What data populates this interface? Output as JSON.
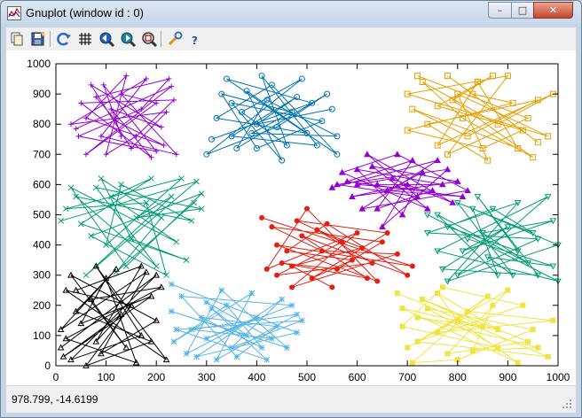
{
  "window": {
    "title": "Gnuplot (window id : 0)"
  },
  "title_buttons": {
    "minimize": "–",
    "maximize": "□",
    "close": "✕"
  },
  "toolbar": {
    "icons": [
      "copy-icon",
      "print-icon",
      "replot-icon",
      "grid-icon",
      "zoom-previous-icon",
      "zoom-next-icon",
      "unzoom-icon",
      "options-icon",
      "help-icon"
    ]
  },
  "status": {
    "coordinates": "978.799, -14.6199"
  },
  "chart_data": {
    "type": "line",
    "title": "",
    "xlabel": "",
    "ylabel": "",
    "xlim": [
      0,
      1000
    ],
    "ylim": [
      0,
      1000
    ],
    "xticks": [
      "0",
      "100",
      "200",
      "300",
      "400",
      "500",
      "600",
      "700",
      "800",
      "900",
      "1000"
    ],
    "yticks": [
      "0",
      "100",
      "200",
      "300",
      "400",
      "500",
      "600",
      "700",
      "800",
      "900",
      "1000"
    ],
    "grid": false,
    "series": [
      {
        "color": "#9400d3",
        "marker": "plus",
        "values": [
          [
            40,
            785
          ],
          [
            230,
            925
          ],
          [
            60,
            700
          ],
          [
            200,
            870
          ],
          [
            130,
            900
          ],
          [
            240,
            700
          ],
          [
            90,
            760
          ],
          [
            180,
            950
          ],
          [
            30,
            800
          ],
          [
            220,
            840
          ],
          [
            150,
            720
          ],
          [
            70,
            930
          ],
          [
            210,
            790
          ],
          [
            110,
            850
          ],
          [
            190,
            690
          ],
          [
            50,
            870
          ],
          [
            235,
            880
          ],
          [
            160,
            760
          ],
          [
            100,
            700
          ],
          [
            140,
            960
          ],
          [
            60,
            820
          ],
          [
            215,
            730
          ],
          [
            120,
            810
          ],
          [
            80,
            890
          ],
          [
            225,
            950
          ],
          [
            170,
            850
          ],
          [
            45,
            760
          ],
          [
            200,
            710
          ],
          [
            95,
            930
          ],
          [
            130,
            760
          ]
        ]
      },
      {
        "color": "#009e73",
        "marker": "x",
        "values": [
          [
            10,
            480
          ],
          [
            280,
            610
          ],
          [
            60,
            300
          ],
          [
            230,
            560
          ],
          [
            160,
            490
          ],
          [
            290,
            520
          ],
          [
            80,
            590
          ],
          [
            200,
            330
          ],
          [
            40,
            560
          ],
          [
            270,
            480
          ],
          [
            130,
            600
          ],
          [
            100,
            400
          ],
          [
            250,
            620
          ],
          [
            20,
            520
          ],
          [
            180,
            540
          ],
          [
            220,
            300
          ],
          [
            70,
            430
          ],
          [
            290,
            570
          ],
          [
            140,
            330
          ],
          [
            30,
            590
          ],
          [
            240,
            410
          ],
          [
            110,
            560
          ],
          [
            190,
            620
          ],
          [
            50,
            470
          ],
          [
            260,
            350
          ],
          [
            150,
            420
          ],
          [
            90,
            620
          ],
          [
            210,
            490
          ],
          [
            120,
            310
          ],
          [
            275,
            540
          ]
        ]
      },
      {
        "color": "#56b4e9",
        "marker": "star",
        "values": [
          [
            230,
            270
          ],
          [
            480,
            110
          ],
          [
            280,
            30
          ],
          [
            450,
            220
          ],
          [
            350,
            60
          ],
          [
            490,
            150
          ],
          [
            240,
            120
          ],
          [
            420,
            20
          ],
          [
            310,
            190
          ],
          [
            380,
            100
          ],
          [
            230,
            180
          ],
          [
            460,
            60
          ],
          [
            330,
            250
          ],
          [
            260,
            40
          ],
          [
            400,
            160
          ],
          [
            300,
            90
          ],
          [
            470,
            200
          ],
          [
            250,
            230
          ],
          [
            360,
            30
          ],
          [
            440,
            130
          ],
          [
            290,
            160
          ],
          [
            410,
            60
          ],
          [
            340,
            200
          ],
          [
            235,
            80
          ],
          [
            390,
            240
          ],
          [
            320,
            20
          ],
          [
            480,
            170
          ],
          [
            270,
            120
          ],
          [
            430,
            90
          ],
          [
            300,
            210
          ]
        ]
      },
      {
        "color": "#000000",
        "marker": "triangle",
        "values": [
          [
            10,
            60
          ],
          [
            200,
            300
          ],
          [
            30,
            20
          ],
          [
            170,
            100
          ],
          [
            80,
            330
          ],
          [
            220,
            20
          ],
          [
            20,
            250
          ],
          [
            150,
            200
          ],
          [
            60,
            0
          ],
          [
            190,
            80
          ],
          [
            40,
            180
          ],
          [
            120,
            320
          ],
          [
            10,
            120
          ],
          [
            180,
            310
          ],
          [
            90,
            40
          ],
          [
            200,
            150
          ],
          [
            30,
            300
          ],
          [
            140,
            60
          ],
          [
            70,
            220
          ],
          [
            210,
            260
          ],
          [
            20,
            90
          ],
          [
            160,
            10
          ],
          [
            100,
            290
          ],
          [
            50,
            140
          ],
          [
            190,
            230
          ],
          [
            15,
            30
          ],
          [
            130,
            170
          ],
          [
            80,
            80
          ],
          [
            170,
            330
          ],
          [
            40,
            250
          ]
        ]
      },
      {
        "color": "#0072b2",
        "marker": "circle",
        "values": [
          [
            310,
            750
          ],
          [
            510,
            870
          ],
          [
            340,
            950
          ],
          [
            560,
            700
          ],
          [
            430,
            930
          ],
          [
            320,
            820
          ],
          [
            500,
            770
          ],
          [
            380,
            910
          ],
          [
            450,
            680
          ],
          [
            350,
            870
          ],
          [
            530,
            810
          ],
          [
            400,
            720
          ],
          [
            330,
            900
          ],
          [
            470,
            840
          ],
          [
            390,
            770
          ],
          [
            560,
            760
          ],
          [
            420,
            880
          ],
          [
            360,
            720
          ],
          [
            540,
            900
          ],
          [
            440,
            790
          ],
          [
            300,
            700
          ],
          [
            490,
            950
          ],
          [
            370,
            840
          ],
          [
            460,
            730
          ],
          [
            410,
            960
          ],
          [
            520,
            730
          ],
          [
            350,
            760
          ],
          [
            480,
            890
          ],
          [
            400,
            800
          ],
          [
            550,
            850
          ]
        ]
      },
      {
        "color": "#e69f00",
        "marker": "square",
        "values": [
          [
            720,
            960
          ],
          [
            940,
            820
          ],
          [
            780,
            700
          ],
          [
            900,
            960
          ],
          [
            700,
            900
          ],
          [
            980,
            760
          ],
          [
            800,
            900
          ],
          [
            860,
            680
          ],
          [
            740,
            800
          ],
          [
            960,
            880
          ],
          [
            820,
            760
          ],
          [
            710,
            850
          ],
          [
            920,
            720
          ],
          [
            840,
            940
          ],
          [
            760,
            730
          ],
          [
            990,
            900
          ],
          [
            880,
            800
          ],
          [
            730,
            940
          ],
          [
            810,
            820
          ],
          [
            950,
            690
          ],
          [
            790,
            880
          ],
          [
            870,
            960
          ],
          [
            760,
            860
          ],
          [
            930,
            780
          ],
          [
            850,
            720
          ],
          [
            700,
            780
          ],
          [
            910,
            870
          ],
          [
            830,
            900
          ],
          [
            780,
            960
          ],
          [
            960,
            740
          ]
        ]
      },
      {
        "color": "#9400d3",
        "marker": "triangle-filled",
        "values": [
          [
            550,
            590
          ],
          [
            760,
            680
          ],
          [
            610,
            520
          ],
          [
            820,
            580
          ],
          [
            680,
            700
          ],
          [
            570,
            640
          ],
          [
            740,
            520
          ],
          [
            630,
            660
          ],
          [
            800,
            610
          ],
          [
            590,
            560
          ],
          [
            700,
            600
          ],
          [
            650,
            460
          ],
          [
            780,
            650
          ],
          [
            560,
            600
          ],
          [
            720,
            560
          ],
          [
            620,
            700
          ],
          [
            790,
            540
          ],
          [
            670,
            620
          ],
          [
            600,
            600
          ],
          [
            750,
            580
          ],
          [
            640,
            520
          ],
          [
            710,
            680
          ],
          [
            580,
            610
          ],
          [
            810,
            560
          ],
          [
            660,
            580
          ],
          [
            730,
            640
          ],
          [
            690,
            500
          ],
          [
            600,
            650
          ],
          [
            770,
            600
          ],
          [
            640,
            600
          ]
        ]
      },
      {
        "color": "#009e73",
        "marker": "triangle-down",
        "values": [
          [
            740,
            500
          ],
          [
            1000,
            280
          ],
          [
            760,
            380
          ],
          [
            980,
            560
          ],
          [
            800,
            300
          ],
          [
            960,
            420
          ],
          [
            740,
            440
          ],
          [
            920,
            540
          ],
          [
            780,
            280
          ],
          [
            1000,
            400
          ],
          [
            830,
            520
          ],
          [
            880,
            300
          ],
          [
            760,
            500
          ],
          [
            940,
            340
          ],
          [
            850,
            440
          ],
          [
            990,
            480
          ],
          [
            810,
            380
          ],
          [
            900,
            460
          ],
          [
            770,
            320
          ],
          [
            960,
            300
          ],
          [
            840,
            560
          ],
          [
            920,
            380
          ],
          [
            780,
            460
          ],
          [
            870,
            520
          ],
          [
            950,
            440
          ],
          [
            800,
            540
          ],
          [
            910,
            300
          ],
          [
            860,
            360
          ],
          [
            990,
            330
          ],
          [
            820,
            420
          ]
        ]
      },
      {
        "color": "#e51e10",
        "marker": "circle-filled",
        "values": [
          [
            410,
            490
          ],
          [
            710,
            330
          ],
          [
            440,
            400
          ],
          [
            640,
            280
          ],
          [
            500,
            520
          ],
          [
            420,
            320
          ],
          [
            600,
            440
          ],
          [
            470,
            260
          ],
          [
            680,
            370
          ],
          [
            530,
            380
          ],
          [
            430,
            460
          ],
          [
            650,
            410
          ],
          [
            560,
            320
          ],
          [
            450,
            340
          ],
          [
            620,
            290
          ],
          [
            490,
            430
          ],
          [
            700,
            300
          ],
          [
            540,
            470
          ],
          [
            460,
            380
          ],
          [
            590,
            350
          ],
          [
            510,
            290
          ],
          [
            660,
            440
          ],
          [
            480,
            480
          ],
          [
            570,
            410
          ],
          [
            440,
            300
          ],
          [
            630,
            340
          ],
          [
            520,
            450
          ],
          [
            610,
            390
          ],
          [
            470,
            330
          ],
          [
            550,
            260
          ]
        ]
      },
      {
        "color": "#f0e442",
        "marker": "square-filled",
        "values": [
          [
            680,
            240
          ],
          [
            980,
            30
          ],
          [
            720,
            80
          ],
          [
            930,
            200
          ],
          [
            770,
            260
          ],
          [
            690,
            130
          ],
          [
            880,
            60
          ],
          [
            740,
            190
          ],
          [
            950,
            120
          ],
          [
            800,
            20
          ],
          [
            710,
            10
          ],
          [
            860,
            230
          ],
          [
            760,
            110
          ],
          [
            990,
            150
          ],
          [
            820,
            180
          ],
          [
            700,
            60
          ],
          [
            900,
            250
          ],
          [
            780,
            40
          ],
          [
            940,
            80
          ],
          [
            730,
            220
          ],
          [
            850,
            130
          ],
          [
            690,
            190
          ],
          [
            920,
            10
          ],
          [
            800,
            150
          ],
          [
            760,
            240
          ],
          [
            880,
            120
          ],
          [
            720,
            160
          ],
          [
            960,
            60
          ],
          [
            830,
            50
          ],
          [
            870,
            200
          ]
        ]
      }
    ]
  }
}
